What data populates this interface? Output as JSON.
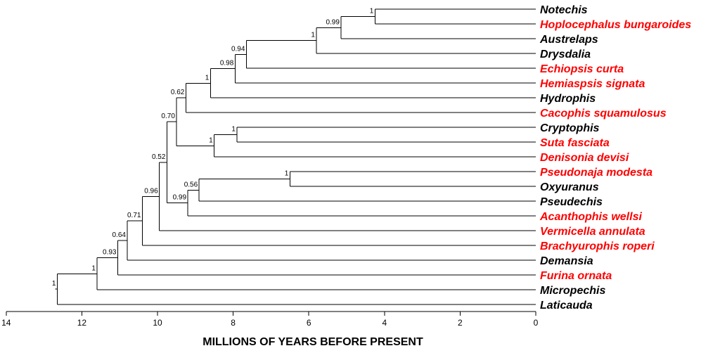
{
  "figure": {
    "axis_title": "MILLIONS OF YEARS BEFORE PRESENT",
    "axis_range": [
      14,
      0
    ],
    "ticks": [
      {
        "value": 14,
        "label": "14"
      },
      {
        "value": 12,
        "label": "12"
      },
      {
        "value": 10,
        "label": "10"
      },
      {
        "value": 8,
        "label": "8"
      },
      {
        "value": 6,
        "label": "6"
      },
      {
        "value": 4,
        "label": "4"
      },
      {
        "value": 2,
        "label": "2"
      },
      {
        "value": 0,
        "label": "0"
      }
    ],
    "colors": {
      "highlight": "#ff0000",
      "default": "#000000"
    }
  },
  "taxa": [
    {
      "name": "Notechis",
      "highlighted": false,
      "upright": false
    },
    {
      "name": "Hoplocephalus bungaroides",
      "highlighted": true,
      "upright": false
    },
    {
      "name": "Austrelaps",
      "highlighted": false,
      "upright": false
    },
    {
      "name": "Drysdalia",
      "highlighted": false,
      "upright": false
    },
    {
      "name": "Echiopsis curta",
      "highlighted": true,
      "upright": false
    },
    {
      "name": "Hemiaspsis signata",
      "highlighted": true,
      "upright": false
    },
    {
      "name": "Hydrophis",
      "highlighted": false,
      "upright": true
    },
    {
      "name": "Cacophis squamulosus",
      "highlighted": true,
      "upright": false
    },
    {
      "name": "Cryptophis",
      "highlighted": false,
      "upright": true
    },
    {
      "name": "Suta fasciata",
      "highlighted": true,
      "upright": false
    },
    {
      "name": "Denisonia devisi",
      "highlighted": true,
      "upright": false
    },
    {
      "name": "Pseudonaja modesta",
      "highlighted": true,
      "upright": false
    },
    {
      "name": "Oxyuranus",
      "highlighted": false,
      "upright": true
    },
    {
      "name": "Pseudechis",
      "highlighted": false,
      "upright": true
    },
    {
      "name": "Acanthophis wellsi",
      "highlighted": true,
      "upright": false
    },
    {
      "name": "Vermicella annulata",
      "highlighted": true,
      "upright": false
    },
    {
      "name": "Brachyurophis roperi",
      "highlighted": true,
      "upright": false
    },
    {
      "name": "Demansia",
      "highlighted": false,
      "upright": false
    },
    {
      "name": "Furina ornata",
      "highlighted": true,
      "upright": false
    },
    {
      "name": "Micropechis",
      "highlighted": false,
      "upright": false
    },
    {
      "name": "Laticauda",
      "highlighted": false,
      "upright": false
    }
  ],
  "nodes": [
    {
      "id": "n1",
      "age_mya": 4.25,
      "support": "1",
      "children": [
        "t0",
        "t1"
      ]
    },
    {
      "id": "n2",
      "age_mya": 5.15,
      "support": "0.99",
      "children": [
        "n1",
        "t2"
      ]
    },
    {
      "id": "n3",
      "age_mya": 5.8,
      "support": "1",
      "children": [
        "n2",
        "t3"
      ]
    },
    {
      "id": "n4",
      "age_mya": 7.65,
      "support": "0.94",
      "children": [
        "n3",
        "t4"
      ]
    },
    {
      "id": "n5",
      "age_mya": 7.95,
      "support": "0.98",
      "children": [
        "n4",
        "t5"
      ]
    },
    {
      "id": "n6",
      "age_mya": 8.6,
      "support": "1",
      "children": [
        "n5",
        "t6"
      ]
    },
    {
      "id": "n7",
      "age_mya": 9.25,
      "support": "0.62",
      "children": [
        "n6",
        "t7"
      ]
    },
    {
      "id": "n8",
      "age_mya": 7.9,
      "support": "1",
      "children": [
        "t8",
        "t9"
      ]
    },
    {
      "id": "n9",
      "age_mya": 8.5,
      "support": "1",
      "children": [
        "n8",
        "t10"
      ]
    },
    {
      "id": "n10",
      "age_mya": 9.5,
      "support": "0.70",
      "children": [
        "n7",
        "n9"
      ]
    },
    {
      "id": "n11",
      "age_mya": 6.5,
      "support": "1",
      "children": [
        "t11",
        "t12"
      ]
    },
    {
      "id": "n12",
      "age_mya": 8.9,
      "support": "0.56",
      "children": [
        "n11",
        "t13"
      ]
    },
    {
      "id": "n13",
      "age_mya": 9.2,
      "support": "0.99",
      "children": [
        "n12",
        "t14"
      ]
    },
    {
      "id": "n14",
      "age_mya": 9.75,
      "support": "0.52",
      "children": [
        "n10",
        "n13"
      ]
    },
    {
      "id": "n15",
      "age_mya": 9.95,
      "support": "0.96",
      "children": [
        "n14",
        "t15"
      ]
    },
    {
      "id": "n16",
      "age_mya": 10.4,
      "support": "0.71",
      "children": [
        "n15",
        "t16"
      ]
    },
    {
      "id": "n17",
      "age_mya": 10.8,
      "support": "0.64",
      "children": [
        "n16",
        "t17"
      ]
    },
    {
      "id": "n18",
      "age_mya": 11.05,
      "support": "0.93",
      "children": [
        "n17",
        "t18"
      ]
    },
    {
      "id": "n19",
      "age_mya": 11.6,
      "support": "1",
      "children": [
        "n18",
        "t19"
      ]
    },
    {
      "id": "n20",
      "age_mya": 12.65,
      "support": "1",
      "children": [
        "n19",
        "t20"
      ]
    }
  ]
}
